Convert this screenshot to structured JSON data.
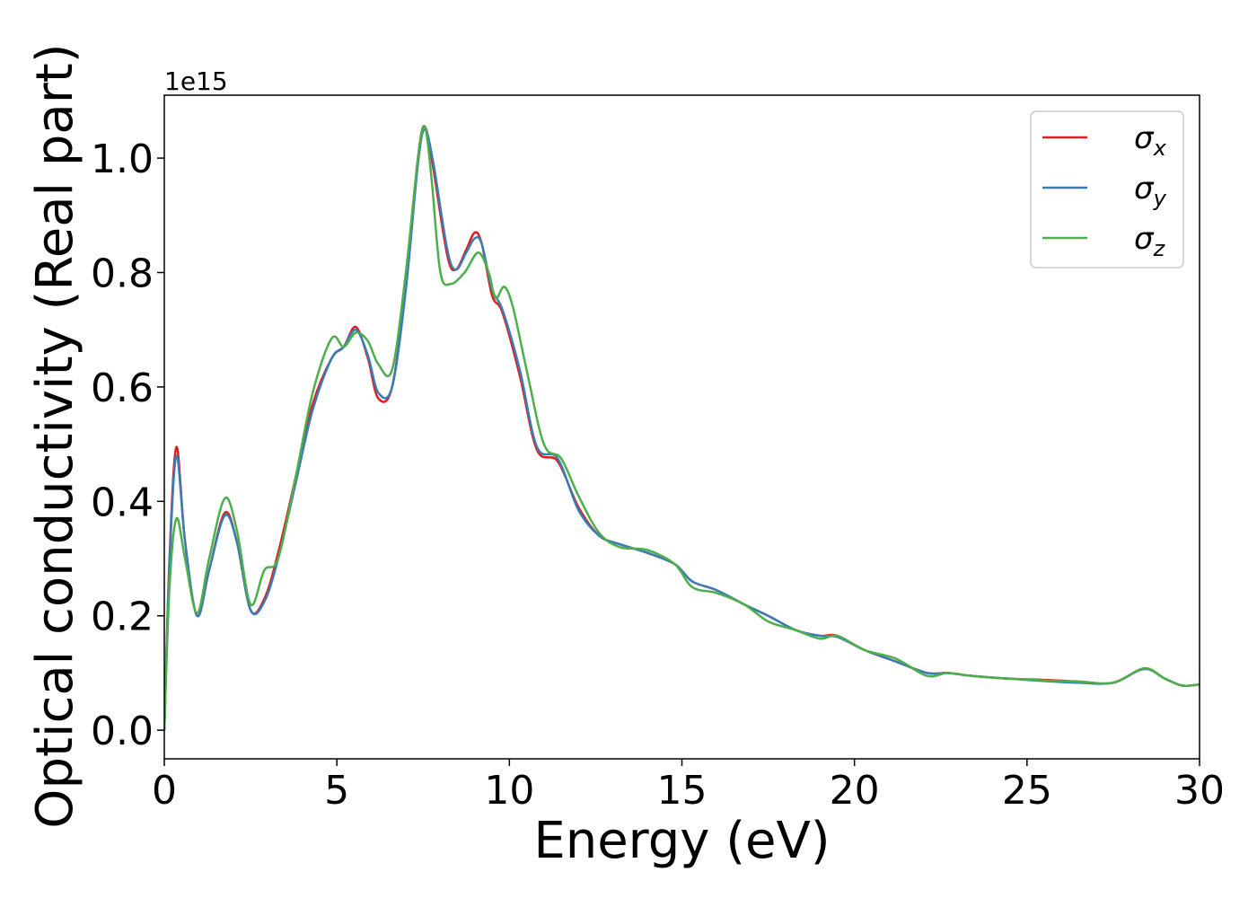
{
  "chart_data": {
    "type": "line",
    "title": "",
    "xlabel": "Energy (eV)",
    "ylabel": "Optical conductivity (Real part)",
    "y_offset_label": "1e15",
    "xlim": [
      0,
      30
    ],
    "ylim": [
      -0.05,
      1.11
    ],
    "xticks": [
      0,
      5,
      10,
      15,
      20,
      25,
      30
    ],
    "xtick_labels": [
      "0",
      "5",
      "10",
      "15",
      "20",
      "25",
      "30"
    ],
    "yticks": [
      0.0,
      0.2,
      0.4,
      0.6,
      0.8,
      1.0
    ],
    "ytick_labels": [
      "0.0",
      "0.2",
      "0.4",
      "0.6",
      "0.8",
      "1.0"
    ],
    "grid": false,
    "legend_position": "top-right",
    "series": [
      {
        "name": "σx",
        "legend_base": "σ",
        "legend_sub": "x",
        "color": "#e41a1c",
        "x": [
          0,
          0.15,
          0.35,
          0.6,
          0.95,
          1.3,
          1.75,
          2.1,
          2.5,
          2.9,
          3.3,
          3.8,
          4.3,
          4.85,
          5.2,
          5.55,
          5.9,
          6.2,
          6.6,
          7.0,
          7.35,
          7.55,
          7.8,
          8.2,
          8.45,
          8.75,
          9.0,
          9.2,
          9.5,
          9.8,
          10.3,
          10.8,
          11.4,
          12.0,
          12.6,
          13.2,
          14.0,
          14.8,
          15.3,
          16.0,
          16.8,
          17.5,
          18.3,
          19.0,
          19.5,
          20.3,
          21.2,
          22.1,
          22.7,
          23.4,
          24.5,
          25.5,
          26.5,
          27.5,
          28.4,
          29.0,
          29.5,
          30.0
        ],
        "y": [
          0.0,
          0.3,
          0.495,
          0.33,
          0.2,
          0.28,
          0.38,
          0.33,
          0.21,
          0.23,
          0.31,
          0.44,
          0.57,
          0.65,
          0.67,
          0.705,
          0.65,
          0.58,
          0.6,
          0.78,
          1.0,
          1.055,
          0.98,
          0.83,
          0.805,
          0.84,
          0.87,
          0.85,
          0.76,
          0.73,
          0.62,
          0.49,
          0.47,
          0.39,
          0.34,
          0.325,
          0.31,
          0.29,
          0.26,
          0.245,
          0.22,
          0.2,
          0.175,
          0.165,
          0.165,
          0.14,
          0.12,
          0.1,
          0.1,
          0.095,
          0.09,
          0.088,
          0.085,
          0.083,
          0.108,
          0.09,
          0.078,
          0.08
        ]
      },
      {
        "name": "σy",
        "legend_base": "σ",
        "legend_sub": "y",
        "color": "#377eb8",
        "x": [
          0,
          0.15,
          0.35,
          0.6,
          0.95,
          1.3,
          1.75,
          2.1,
          2.5,
          2.9,
          3.3,
          3.8,
          4.3,
          4.85,
          5.2,
          5.55,
          5.9,
          6.2,
          6.6,
          7.0,
          7.35,
          7.55,
          7.8,
          8.2,
          8.45,
          8.75,
          9.0,
          9.2,
          9.5,
          9.8,
          10.3,
          10.8,
          11.4,
          12.0,
          12.6,
          13.2,
          14.0,
          14.8,
          15.3,
          16.0,
          16.8,
          17.5,
          18.3,
          19.0,
          19.5,
          20.3,
          21.2,
          22.1,
          22.7,
          23.4,
          24.5,
          25.5,
          26.5,
          27.5,
          28.4,
          29.0,
          29.5,
          30.0
        ],
        "y": [
          0.0,
          0.29,
          0.48,
          0.33,
          0.2,
          0.28,
          0.375,
          0.33,
          0.21,
          0.225,
          0.3,
          0.43,
          0.56,
          0.65,
          0.67,
          0.7,
          0.655,
          0.59,
          0.6,
          0.77,
          0.99,
          1.05,
          0.99,
          0.84,
          0.805,
          0.835,
          0.86,
          0.85,
          0.77,
          0.735,
          0.63,
          0.495,
          0.475,
          0.385,
          0.34,
          0.325,
          0.31,
          0.29,
          0.26,
          0.245,
          0.22,
          0.2,
          0.175,
          0.165,
          0.163,
          0.14,
          0.12,
          0.1,
          0.1,
          0.095,
          0.09,
          0.086,
          0.083,
          0.083,
          0.107,
          0.09,
          0.078,
          0.08
        ]
      },
      {
        "name": "σz",
        "legend_base": "σ",
        "legend_sub": "z",
        "color": "#4daf4a",
        "x": [
          0,
          0.15,
          0.35,
          0.6,
          0.95,
          1.3,
          1.75,
          2.1,
          2.5,
          2.9,
          3.3,
          3.8,
          4.3,
          4.85,
          5.2,
          5.55,
          5.9,
          6.2,
          6.6,
          7.0,
          7.35,
          7.55,
          7.75,
          8.0,
          8.3,
          8.7,
          9.1,
          9.4,
          9.6,
          9.85,
          10.1,
          10.5,
          11.0,
          11.5,
          12.0,
          12.6,
          13.2,
          14.0,
          14.8,
          15.3,
          16.0,
          16.8,
          17.5,
          18.3,
          19.0,
          19.5,
          20.3,
          21.2,
          22.1,
          22.7,
          23.4,
          24.5,
          25.5,
          26.5,
          27.5,
          28.4,
          29.0,
          29.5,
          30.0
        ],
        "y": [
          0.0,
          0.25,
          0.37,
          0.3,
          0.205,
          0.3,
          0.405,
          0.35,
          0.22,
          0.28,
          0.3,
          0.44,
          0.59,
          0.685,
          0.67,
          0.695,
          0.68,
          0.64,
          0.63,
          0.8,
          1.0,
          1.055,
          0.96,
          0.8,
          0.78,
          0.8,
          0.835,
          0.8,
          0.755,
          0.775,
          0.74,
          0.63,
          0.5,
          0.475,
          0.41,
          0.345,
          0.32,
          0.315,
          0.29,
          0.25,
          0.24,
          0.22,
          0.19,
          0.175,
          0.16,
          0.165,
          0.14,
          0.125,
          0.095,
          0.1,
          0.095,
          0.09,
          0.087,
          0.085,
          0.083,
          0.108,
          0.09,
          0.078,
          0.08
        ]
      }
    ]
  }
}
